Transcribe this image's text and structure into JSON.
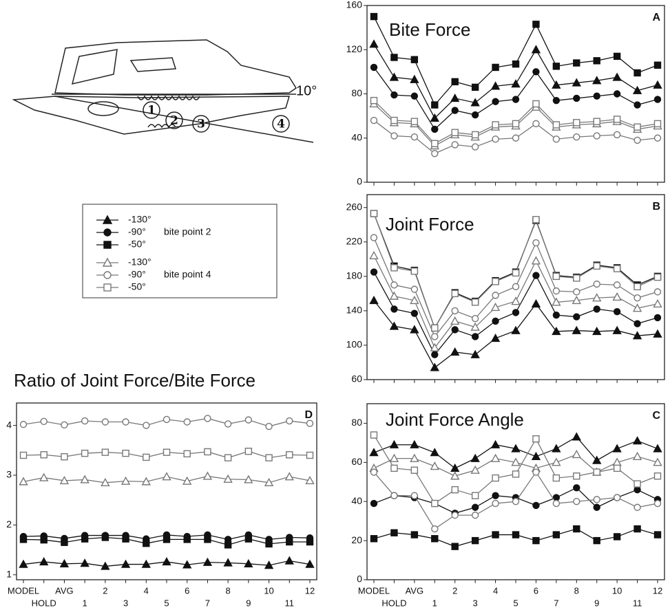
{
  "diagram": {
    "angle_label": "10°",
    "bite_points": [
      "1",
      "2",
      "3",
      "4"
    ]
  },
  "legend": {
    "groups": [
      {
        "label": "bite point 2",
        "entries": [
          "-130°",
          "-90°",
          "-50°"
        ]
      },
      {
        "label": "bite point 4",
        "entries": [
          "-130°",
          "-90°",
          "-50°"
        ]
      }
    ]
  },
  "chart_data": [
    {
      "type": "line",
      "title": "Bite Force",
      "panel_label": "A",
      "ylim": [
        0,
        160
      ],
      "yticks": [
        0,
        40,
        80,
        120,
        160
      ],
      "series": [
        {
          "marker": "triangle",
          "filled": true,
          "color": "#111111",
          "values": [
            125,
            95,
            93,
            58,
            76,
            72,
            87,
            89,
            120,
            88,
            90,
            92,
            95,
            83,
            88
          ]
        },
        {
          "marker": "circle",
          "filled": true,
          "color": "#111111",
          "values": [
            104,
            79,
            78,
            48,
            65,
            61,
            73,
            75,
            100,
            74,
            76,
            78,
            80,
            70,
            75
          ]
        },
        {
          "marker": "square",
          "filled": true,
          "color": "#111111",
          "values": [
            150,
            113,
            111,
            70,
            91,
            86,
            104,
            107,
            143,
            105,
            108,
            110,
            114,
            99,
            106
          ]
        },
        {
          "marker": "triangle",
          "filled": false,
          "color": "#777777",
          "values": [
            71,
            54,
            53,
            33,
            43,
            41,
            50,
            51,
            68,
            50,
            52,
            53,
            55,
            48,
            51
          ]
        },
        {
          "marker": "circle",
          "filled": false,
          "color": "#777777",
          "values": [
            56,
            42,
            41,
            26,
            34,
            32,
            39,
            40,
            53,
            39,
            41,
            42,
            43,
            38,
            40
          ]
        },
        {
          "marker": "square",
          "filled": false,
          "color": "#777777",
          "values": [
            74,
            56,
            55,
            35,
            45,
            43,
            52,
            53,
            71,
            52,
            54,
            55,
            57,
            50,
            53
          ]
        }
      ]
    },
    {
      "type": "line",
      "title": "Joint Force",
      "panel_label": "B",
      "ylim": [
        60,
        275
      ],
      "yticks": [
        60,
        100,
        140,
        180,
        220,
        260
      ],
      "series": [
        {
          "marker": "triangle",
          "filled": true,
          "color": "#111111",
          "values": [
            152,
            122,
            118,
            74,
            92,
            89,
            108,
            117,
            148,
            116,
            117,
            116,
            117,
            111,
            113
          ]
        },
        {
          "marker": "circle",
          "filled": true,
          "color": "#111111",
          "values": [
            185,
            142,
            137,
            89,
            118,
            110,
            128,
            138,
            181,
            135,
            133,
            142,
            139,
            125,
            132
          ]
        },
        {
          "marker": "square",
          "filled": true,
          "color": "#111111",
          "values": [
            253,
            192,
            187,
            120,
            161,
            151,
            175,
            185,
            245,
            181,
            179,
            193,
            190,
            170,
            180
          ]
        },
        {
          "marker": "triangle",
          "filled": false,
          "color": "#777777",
          "values": [
            204,
            157,
            152,
            97,
            128,
            121,
            144,
            151,
            198,
            150,
            152,
            155,
            156,
            143,
            148
          ]
        },
        {
          "marker": "circle",
          "filled": false,
          "color": "#777777",
          "values": [
            225,
            170,
            165,
            110,
            140,
            131,
            158,
            168,
            219,
            163,
            162,
            171,
            170,
            155,
            162
          ]
        },
        {
          "marker": "square",
          "filled": false,
          "color": "#777777",
          "values": [
            253,
            190,
            186,
            120,
            160,
            150,
            174,
            184,
            246,
            180,
            178,
            192,
            189,
            168,
            179
          ]
        }
      ]
    },
    {
      "type": "line",
      "title": "Joint Force Angle",
      "panel_label": "C",
      "categories": [
        "MODEL",
        "HOLD",
        "AVG",
        "1",
        "2",
        "3",
        "4",
        "5",
        "6",
        "7",
        "8",
        "9",
        "10",
        "11",
        "12"
      ],
      "ylim": [
        0,
        90
      ],
      "yticks": [
        0,
        20,
        40,
        60,
        80
      ],
      "series": [
        {
          "marker": "triangle",
          "filled": true,
          "color": "#111111",
          "values": [
            65,
            69,
            69,
            65,
            57,
            62,
            69,
            67,
            63,
            67,
            73,
            61,
            67,
            71,
            67
          ]
        },
        {
          "marker": "circle",
          "filled": true,
          "color": "#111111",
          "values": [
            39,
            43,
            42,
            39,
            34,
            37,
            43,
            42,
            38,
            42,
            47,
            37,
            42,
            46,
            41
          ]
        },
        {
          "marker": "square",
          "filled": true,
          "color": "#111111",
          "values": [
            21,
            24,
            23,
            21,
            17,
            20,
            23,
            23,
            20,
            23,
            26,
            20,
            22,
            26,
            23
          ]
        },
        {
          "marker": "triangle",
          "filled": false,
          "color": "#777777",
          "values": [
            57,
            62,
            62,
            58,
            53,
            56,
            62,
            60,
            57,
            60,
            64,
            55,
            60,
            63,
            60
          ]
        },
        {
          "marker": "circle",
          "filled": false,
          "color": "#777777",
          "values": [
            55,
            43,
            43,
            26,
            33,
            33,
            39,
            40,
            55,
            39,
            40,
            41,
            42,
            37,
            39
          ]
        },
        {
          "marker": "square",
          "filled": false,
          "color": "#777777",
          "values": [
            74,
            57,
            56,
            39,
            46,
            43,
            52,
            54,
            72,
            52,
            53,
            55,
            57,
            49,
            53
          ]
        }
      ]
    },
    {
      "type": "line",
      "title": "Ratio of Joint Force/Bite Force",
      "panel_label": "D",
      "categories": [
        "MODEL",
        "HOLD",
        "AVG",
        "1",
        "2",
        "3",
        "4",
        "5",
        "6",
        "7",
        "8",
        "9",
        "10",
        "11",
        "12"
      ],
      "ylim": [
        0.9,
        4.45
      ],
      "yticks": [
        1,
        2,
        3,
        4
      ],
      "series": [
        {
          "marker": "triangle",
          "filled": true,
          "color": "#111111",
          "values": [
            1.21,
            1.26,
            1.22,
            1.23,
            1.17,
            1.21,
            1.21,
            1.26,
            1.2,
            1.25,
            1.24,
            1.22,
            1.19,
            1.28,
            1.21
          ]
        },
        {
          "marker": "circle",
          "filled": true,
          "color": "#111111",
          "values": [
            1.77,
            1.78,
            1.73,
            1.79,
            1.79,
            1.79,
            1.72,
            1.8,
            1.77,
            1.8,
            1.71,
            1.8,
            1.71,
            1.75,
            1.74
          ]
        },
        {
          "marker": "square",
          "filled": true,
          "color": "#111111",
          "values": [
            1.71,
            1.7,
            1.65,
            1.72,
            1.75,
            1.72,
            1.63,
            1.71,
            1.71,
            1.71,
            1.6,
            1.72,
            1.62,
            1.66,
            1.66
          ]
        },
        {
          "marker": "triangle",
          "filled": false,
          "color": "#777777",
          "values": [
            2.87,
            2.95,
            2.89,
            2.91,
            2.85,
            2.88,
            2.87,
            2.97,
            2.88,
            2.98,
            2.92,
            2.91,
            2.85,
            2.97,
            2.89
          ]
        },
        {
          "marker": "circle",
          "filled": false,
          "color": "#777777",
          "values": [
            4.02,
            4.08,
            4.01,
            4.09,
            4.07,
            4.07,
            4.0,
            4.12,
            4.07,
            4.14,
            4.03,
            4.11,
            3.98,
            4.09,
            4.04
          ]
        },
        {
          "marker": "square",
          "filled": false,
          "color": "#777777",
          "values": [
            3.4,
            3.41,
            3.37,
            3.44,
            3.46,
            3.44,
            3.36,
            3.46,
            3.43,
            3.47,
            3.35,
            3.48,
            3.35,
            3.41,
            3.4
          ]
        }
      ]
    }
  ]
}
